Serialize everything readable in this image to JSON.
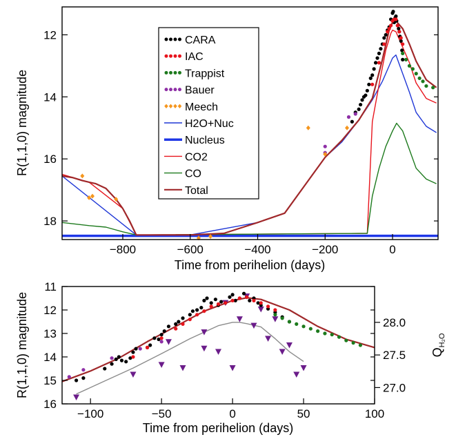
{
  "chart_data": [
    {
      "type": "scatter",
      "xlabel": "Time from perihelion (days)",
      "ylabel": "R(1,1,0) magnitude",
      "xlim": [
        -980,
        135
      ],
      "ylim": [
        18.6,
        11.1
      ],
      "y_inverted": true,
      "xticks": [
        -800,
        -600,
        -400,
        -200,
        0
      ],
      "xtick_labels": [
        "−800",
        "−600",
        "−400",
        "−200",
        "0"
      ],
      "yticks": [
        12,
        14,
        16,
        18
      ],
      "ytick_labels": [
        "12",
        "14",
        "16",
        "18"
      ],
      "legend_position": "upper-center",
      "legend": [
        {
          "name": "CARA",
          "kind": "dots",
          "color": "#000000"
        },
        {
          "name": "IAC",
          "kind": "dots",
          "color": "#e8141c"
        },
        {
          "name": "Trappist",
          "kind": "dots",
          "color": "#1d7a1d"
        },
        {
          "name": "Bauer",
          "kind": "dots",
          "color": "#8e2fa6"
        },
        {
          "name": "Meech",
          "kind": "diamonds",
          "color": "#f5961e"
        },
        {
          "name": "H2O+Nuc",
          "kind": "line",
          "color": "#1f37d6",
          "width": 1.4
        },
        {
          "name": "Nucleus",
          "kind": "line",
          "color": "#1f37e6",
          "width": 3.5
        },
        {
          "name": "CO2",
          "kind": "line",
          "color": "#e8141c",
          "width": 1.4
        },
        {
          "name": "CO",
          "kind": "line",
          "color": "#1d7a1d",
          "width": 1.4
        },
        {
          "name": "Total",
          "kind": "line",
          "color": "#a0282a",
          "width": 2.2
        }
      ],
      "series": [
        {
          "name": "Nucleus",
          "x": [
            -980,
            135
          ],
          "y": [
            18.48,
            18.48
          ]
        },
        {
          "name": "H2O+Nuc",
          "x": [
            -980,
            -760,
            -600,
            -400,
            -320,
            -200,
            -150,
            -100,
            -60,
            -30,
            -10,
            0,
            10,
            30,
            50,
            70,
            100,
            130
          ],
          "y": [
            16.55,
            18.45,
            18.45,
            18.05,
            17.75,
            15.95,
            15.45,
            14.75,
            14.1,
            13.5,
            13.0,
            12.75,
            12.65,
            13.25,
            13.85,
            14.5,
            14.95,
            15.15
          ]
        },
        {
          "name": "CO2",
          "x": [
            -980,
            -900,
            -800,
            -760,
            -75,
            -60,
            -40,
            -20,
            -5,
            0,
            10,
            30,
            50,
            70,
            100,
            130
          ],
          "y": [
            16.5,
            16.75,
            17.6,
            18.45,
            18.4,
            14.8,
            13.6,
            12.5,
            11.95,
            11.85,
            11.9,
            12.4,
            12.9,
            13.55,
            14.05,
            14.2
          ]
        },
        {
          "name": "CO",
          "x": [
            -980,
            -900,
            -850,
            -800,
            -760,
            -75,
            -60,
            -40,
            -20,
            0,
            12,
            30,
            50,
            70,
            100,
            130
          ],
          "y": [
            18.05,
            18.15,
            18.2,
            18.35,
            18.45,
            18.4,
            17.2,
            16.3,
            15.6,
            15.1,
            14.85,
            15.1,
            15.7,
            16.3,
            16.65,
            16.8
          ]
        },
        {
          "name": "Total",
          "x": [
            -980,
            -950,
            -920,
            -900,
            -880,
            -850,
            -820,
            -800,
            -780,
            -760,
            -600,
            -500,
            -400,
            -320,
            -250,
            -200,
            -150,
            -100,
            -60,
            -30,
            -10,
            0,
            10,
            30,
            50,
            70,
            100,
            130
          ],
          "y": [
            16.55,
            16.6,
            16.7,
            16.75,
            16.8,
            16.95,
            17.3,
            17.6,
            18.0,
            18.45,
            18.45,
            18.4,
            18.05,
            17.75,
            16.7,
            15.95,
            15.4,
            14.75,
            14.05,
            12.8,
            11.85,
            11.6,
            11.55,
            11.8,
            12.3,
            12.85,
            13.45,
            13.7
          ]
        },
        {
          "name": "CARA",
          "x": [
            -120,
            -110,
            -100,
            -95,
            -90,
            -85,
            -80,
            -75,
            -70,
            -65,
            -60,
            -55,
            -50,
            -45,
            -40,
            -35,
            -30,
            -25,
            -20,
            -15,
            -10,
            -5,
            0,
            2,
            5,
            8,
            10,
            12,
            15,
            18,
            20,
            22,
            25,
            28,
            30
          ],
          "y": [
            14.8,
            14.5,
            14.4,
            14.25,
            14.1,
            14.0,
            13.95,
            13.8,
            13.6,
            13.4,
            13.3,
            13.1,
            12.9,
            12.75,
            12.6,
            12.45,
            12.3,
            12.1,
            12.0,
            11.85,
            11.75,
            11.5,
            11.3,
            11.25,
            11.6,
            11.45,
            11.4,
            11.55,
            11.7,
            11.8,
            11.9,
            12.05,
            12.2,
            12.5,
            12.8
          ]
        },
        {
          "name": "IAC",
          "x": [
            -60,
            -40,
            -25,
            -15,
            -10,
            -5,
            0,
            5,
            10,
            15,
            20,
            25,
            30
          ],
          "y": [
            13.6,
            12.9,
            12.3,
            11.9,
            11.8,
            11.7,
            11.55,
            11.5,
            11.5,
            11.7,
            11.9,
            12.1,
            12.3
          ]
        },
        {
          "name": "Trappist",
          "x": [
            30,
            40,
            50,
            60,
            70,
            80,
            90,
            100,
            120
          ],
          "y": [
            12.6,
            12.8,
            13.0,
            13.1,
            13.25,
            13.4,
            13.5,
            13.65,
            13.7
          ]
        },
        {
          "name": "Bauer",
          "x": [
            -200,
            -200,
            -130,
            -110
          ],
          "y": [
            15.6,
            15.8,
            14.65,
            14.55
          ]
        },
        {
          "name": "Meech",
          "x": [
            -920,
            -900,
            -890,
            -820,
            -250,
            -200,
            -135,
            -575,
            -540
          ],
          "y": [
            16.55,
            17.25,
            17.2,
            17.3,
            15.0,
            15.85,
            15.0,
            18.55,
            18.5
          ]
        }
      ]
    },
    {
      "type": "scatter",
      "xlabel": "Time from perihelion (days)",
      "ylabel": "R(1,1,0) magnitude",
      "y2label_main": "Q",
      "y2label_sub": "H₂O",
      "xlim": [
        -120,
        100
      ],
      "ylim": [
        16,
        11
      ],
      "y_inverted": true,
      "xticks": [
        -100,
        -50,
        0,
        50,
        100
      ],
      "xtick_labels": [
        "−100",
        "−50",
        "0",
        "50",
        "100"
      ],
      "yticks": [
        11,
        12,
        13,
        14,
        15,
        16
      ],
      "ytick_labels": [
        "11",
        "12",
        "13",
        "14",
        "15",
        "16"
      ],
      "y2lim": [
        26.75,
        28.55
      ],
      "y2ticks": [
        27.0,
        27.5,
        28.0
      ],
      "y2tick_labels": [
        "27.0",
        "27.5",
        "28.0"
      ],
      "series": [
        {
          "name": "Total",
          "color": "#a0282a",
          "x": [
            -120,
            -100,
            -80,
            -60,
            -40,
            -20,
            0,
            10,
            20,
            40,
            60,
            80,
            100
          ],
          "y": [
            15.05,
            14.6,
            14.05,
            13.35,
            12.7,
            12.05,
            11.6,
            11.48,
            11.55,
            12.0,
            12.7,
            13.25,
            13.6
          ]
        },
        {
          "name": "QH2O model",
          "color": "#8c8c8c",
          "axis": "y2",
          "x": [
            -110,
            -90,
            -70,
            -50,
            -30,
            -10,
            0,
            5,
            10,
            20,
            30,
            40,
            50
          ],
          "y": [
            26.9,
            27.1,
            27.3,
            27.52,
            27.75,
            27.95,
            28.0,
            28.0,
            27.98,
            27.93,
            27.75,
            27.55,
            27.4
          ]
        },
        {
          "name": "QH2O",
          "color": "#6b1d8a",
          "axis": "y2",
          "x": [
            -110,
            -70,
            -50,
            -45,
            -35,
            -20,
            -20,
            -10,
            -5,
            0,
            5,
            10,
            15,
            20,
            25,
            30,
            35,
            40,
            45,
            50
          ],
          "y": [
            26.85,
            27.2,
            27.35,
            27.7,
            27.3,
            27.6,
            27.85,
            27.55,
            28.3,
            27.3,
            28.05,
            28.4,
            27.95,
            28.2,
            27.75,
            28.05,
            27.55,
            27.65,
            27.2,
            27.3
          ]
        },
        {
          "name": "CARA",
          "color": "#000000",
          "x": [
            -110,
            -105,
            -90,
            -85,
            -82,
            -80,
            -78,
            -75,
            -72,
            -70,
            -68,
            -60,
            -58,
            -55,
            -52,
            -50,
            -48,
            -45,
            -40,
            -38,
            -35,
            -30,
            -28,
            -25,
            -22,
            -20,
            -18,
            -15,
            -12,
            -10,
            -8,
            -5,
            -2,
            0,
            2,
            5,
            8,
            10,
            12,
            15,
            18,
            20,
            25,
            30,
            35,
            40
          ],
          "y": [
            15.0,
            14.9,
            14.5,
            14.3,
            14.1,
            14.0,
            14.15,
            14.2,
            14.05,
            13.8,
            13.65,
            13.6,
            13.5,
            13.2,
            13.25,
            13.05,
            12.9,
            12.7,
            12.6,
            12.5,
            12.35,
            12.2,
            12.05,
            12.0,
            11.9,
            11.6,
            11.5,
            11.7,
            11.55,
            11.8,
            11.65,
            11.7,
            11.45,
            11.35,
            11.6,
            11.5,
            11.3,
            11.45,
            11.6,
            11.5,
            11.7,
            11.8,
            11.95,
            12.1,
            12.3,
            12.5
          ]
        },
        {
          "name": "IAC",
          "color": "#e8141c",
          "x": [
            -70,
            -60,
            -50,
            -40,
            -35,
            -30,
            -25,
            -20,
            -15,
            -10,
            -5,
            0,
            5,
            10,
            15,
            20,
            25,
            30
          ],
          "y": [
            14.0,
            13.6,
            13.2,
            12.8,
            12.6,
            12.4,
            12.2,
            12.05,
            11.85,
            11.75,
            11.7,
            11.6,
            11.5,
            11.45,
            11.6,
            11.7,
            11.85,
            12.0
          ]
        },
        {
          "name": "Trappist",
          "color": "#1d7a1d",
          "x": [
            30,
            35,
            40,
            45,
            50,
            55,
            60,
            65,
            70,
            75,
            80,
            85,
            90
          ],
          "y": [
            12.2,
            12.35,
            12.5,
            12.6,
            12.7,
            12.8,
            12.9,
            13.0,
            13.05,
            13.15,
            13.3,
            13.4,
            13.5
          ]
        },
        {
          "name": "Bauer",
          "color": "#8e2fa6",
          "x": [
            -115,
            -105,
            -85,
            -65,
            -50
          ],
          "y": [
            14.85,
            14.55,
            14.05,
            13.65,
            13.35
          ]
        }
      ]
    }
  ]
}
